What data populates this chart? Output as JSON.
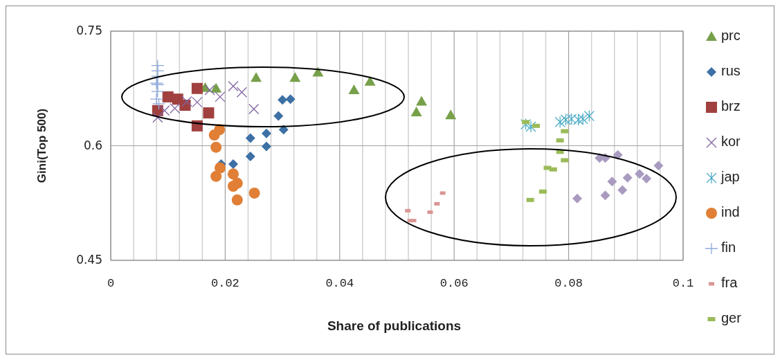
{
  "chart_data": {
    "type": "scatter",
    "xlabel": "Share of publications",
    "ylabel": "Gini(Top 500)",
    "xlim": [
      0,
      0.1
    ],
    "ylim": [
      0.45,
      0.75
    ],
    "xticks": [
      {
        "value": 0,
        "label": "0"
      },
      {
        "value": 0.004,
        "label": null
      },
      {
        "value": 0.008,
        "label": null
      },
      {
        "value": 0.012,
        "label": null
      },
      {
        "value": 0.016,
        "label": null
      },
      0.02,
      {
        "value": 0.024,
        "label": null
      },
      {
        "value": 0.028,
        "label": null
      },
      {
        "value": 0.032,
        "label": null
      },
      {
        "value": 0.036,
        "label": null
      },
      0.04,
      {
        "value": 0.044,
        "label": null
      },
      {
        "value": 0.048,
        "label": null
      },
      {
        "value": 0.052,
        "label": null
      },
      {
        "value": 0.056,
        "label": null
      },
      0.06,
      {
        "value": 0.064,
        "label": null
      },
      {
        "value": 0.068,
        "label": null
      },
      {
        "value": 0.072,
        "label": null
      },
      {
        "value": 0.076,
        "label": null
      },
      0.08,
      {
        "value": 0.084,
        "label": null
      },
      {
        "value": 0.088,
        "label": null
      },
      {
        "value": 0.092,
        "label": null
      },
      {
        "value": 0.096,
        "label": null
      },
      0.1
    ],
    "yticks": [
      0.45,
      0.6,
      0.75
    ],
    "grid": true,
    "legend": "right",
    "series": [
      {
        "name": "prc",
        "color": "#77a04a",
        "marker": "triangle",
        "x": [
          0.0165,
          0.0184,
          0.0254,
          0.0322,
          0.0362,
          0.0425,
          0.0453,
          0.0543,
          0.0534,
          0.0594
        ],
        "values": [
          0.676,
          0.675,
          0.689,
          0.689,
          0.696,
          0.673,
          0.684,
          0.658,
          0.644,
          0.64
        ]
      },
      {
        "name": "rus",
        "color": "#3d70a5",
        "marker": "diamond",
        "x": [
          0.0193,
          0.0214,
          0.0244,
          0.0244,
          0.0272,
          0.0272,
          0.0293,
          0.0302,
          0.03,
          0.0314
        ],
        "values": [
          0.576,
          0.576,
          0.586,
          0.61,
          0.616,
          0.599,
          0.639,
          0.621,
          0.66,
          0.661
        ]
      },
      {
        "name": "brz",
        "color": "#a0403f",
        "marker": "square",
        "x": [
          0.0082,
          0.01,
          0.0117,
          0.013,
          0.0151,
          0.0151,
          0.0171
        ],
        "values": [
          0.646,
          0.664,
          0.661,
          0.653,
          0.675,
          0.626,
          0.643
        ]
      },
      {
        "name": "kor",
        "color": "#8064a2",
        "marker": "cross",
        "x": [
          0.0082,
          0.0094,
          0.0112,
          0.0133,
          0.0151,
          0.0173,
          0.0191,
          0.0214,
          0.0229,
          0.025
        ],
        "values": [
          0.637,
          0.646,
          0.649,
          0.658,
          0.657,
          0.673,
          0.664,
          0.678,
          0.67,
          0.648
        ]
      },
      {
        "name": "jap",
        "color": "#4bacc6",
        "marker": "cross",
        "x": [
          0.0725,
          0.0734,
          0.0785,
          0.0795,
          0.0805,
          0.0817,
          0.0825,
          0.0836
        ],
        "values": [
          0.628,
          0.625,
          0.631,
          0.634,
          0.635,
          0.634,
          0.635,
          0.639
        ]
      },
      {
        "name": "ind",
        "color": "#e07f35",
        "marker": "circle",
        "x": [
          0.019,
          0.0181,
          0.0184,
          0.0191,
          0.0184,
          0.0214,
          0.0221,
          0.0214,
          0.0221,
          0.0251
        ],
        "values": [
          0.621,
          0.614,
          0.598,
          0.571,
          0.56,
          0.563,
          0.551,
          0.547,
          0.529,
          0.538
        ]
      },
      {
        "name": "fin",
        "color": "#8ea9db",
        "marker": "plus",
        "x": [
          0.0082,
          0.0082,
          0.0082,
          0.008,
          0.0082,
          0.0082,
          0.008,
          0.0084
        ],
        "values": [
          0.705,
          0.698,
          0.691,
          0.682,
          0.68,
          0.671,
          0.661,
          0.655
        ]
      },
      {
        "name": "fra",
        "color": "#d99694",
        "marker": "square",
        "x": [
          0.0519,
          0.0523,
          0.0529,
          0.0558,
          0.057,
          0.058
        ],
        "values": [
          0.515,
          0.502,
          0.502,
          0.513,
          0.524,
          0.538
        ]
      },
      {
        "name": "ger",
        "color": "#9bbb59",
        "marker": "square",
        "x": [
          0.0725,
          0.0743,
          0.0793,
          0.0785,
          0.0785,
          0.0793,
          0.0763,
          0.0773,
          0.0755,
          0.0733
        ],
        "values": [
          0.631,
          0.626,
          0.619,
          0.607,
          0.592,
          0.581,
          0.571,
          0.569,
          0.54,
          0.529
        ]
      },
      {
        "color": "#a99bc0",
        "marker": "diamond",
        "x": [
          0.0815,
          0.0854,
          0.0864,
          0.0886,
          0.0864,
          0.0876,
          0.0894,
          0.0903,
          0.0924,
          0.0936,
          0.0957
        ],
        "values": [
          0.531,
          0.584,
          0.584,
          0.588,
          0.535,
          0.553,
          0.542,
          0.558,
          0.563,
          0.557,
          0.574
        ]
      }
    ]
  }
}
